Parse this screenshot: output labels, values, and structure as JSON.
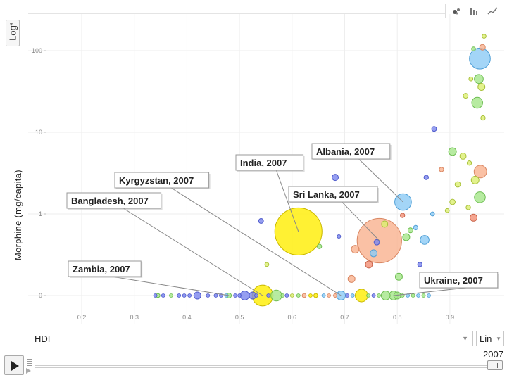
{
  "y_scale": {
    "label": "Log"
  },
  "y_axis_selector": {
    "label": "Morphine (mg/capita)"
  },
  "x_axis_selector": {
    "label": "HDI"
  },
  "x_scale": {
    "label": "Lin"
  },
  "timeline": {
    "year": "2007"
  },
  "chart_type_icons": [
    "bubble-chart-icon",
    "bar-chart-icon",
    "line-chart-icon"
  ],
  "colors": {
    "grid": "#eeeeee",
    "highlight_yellow": "#ffee00",
    "sri_lanka_orange": "#f9a07a",
    "blue": "#6a7bea",
    "light_blue": "#79c0f2",
    "green": "#9be07a",
    "yellow_green": "#d8ee60",
    "red_orange": "#f0856a"
  },
  "chart_data": {
    "type": "scatter",
    "title": "",
    "xlabel": "HDI",
    "ylabel": "Morphine (mg/capita)",
    "x_scale": "linear",
    "y_scale": "log",
    "xlim": [
      0.13,
      0.99
    ],
    "x_ticks": [
      0.2,
      0.3,
      0.4,
      0.5,
      0.6,
      0.7,
      0.8,
      0.9
    ],
    "x_tick_labels": [
      "0.2",
      "0.3",
      "0.4",
      "0.5",
      "0.6",
      "0.7",
      "0.8",
      "0.9"
    ],
    "y_ticks": [
      0,
      1,
      10,
      100
    ],
    "y_tick_labels": [
      "0",
      "1",
      "10",
      "100"
    ],
    "grid": true,
    "annotations": [
      {
        "text": "India, 2007",
        "x": 0.61,
        "y": 0.61
      },
      {
        "text": "Albania, 2007",
        "x": 0.81,
        "y": 1.4
      },
      {
        "text": "Kyrgyzstan, 2007",
        "x": 0.7,
        "y": 0
      },
      {
        "text": "Sri Lanka, 2007",
        "x": 0.76,
        "y": 0.47
      },
      {
        "text": "Bangladesh, 2007",
        "x": 0.54,
        "y": 0
      },
      {
        "text": "Zambia, 2007",
        "x": 0.49,
        "y": 0
      },
      {
        "text": "Ukraine, 2007",
        "x": 0.79,
        "y": 0
      }
    ],
    "points": [
      {
        "x": 0.612,
        "y": 0.61,
        "size": 1125,
        "color": "yellow",
        "label": "India, 2007"
      },
      {
        "x": 0.766,
        "y": 0.47,
        "size": 1000,
        "color": "orange",
        "label": "Sri Lanka, 2007"
      },
      {
        "x": 0.544,
        "y": 0,
        "size": 220,
        "color": "yellow",
        "label": "Bangladesh, 2007"
      },
      {
        "x": 0.811,
        "y": 1.4,
        "size": 140,
        "color": "lightblue",
        "label": "Albania, 2007"
      },
      {
        "x": 0.693,
        "y": 0,
        "size": 40,
        "color": "lightblue",
        "label": "Kyrgyzstan, 2007"
      },
      {
        "x": 0.48,
        "y": 0,
        "size": 12,
        "color": "green",
        "label": "Zambia, 2007"
      },
      {
        "x": 0.793,
        "y": 0,
        "size": 40,
        "color": "green",
        "label": "Ukraine, 2007"
      },
      {
        "x": 0.957,
        "y": 80,
        "size": 220,
        "color": "lightblue"
      },
      {
        "x": 0.962,
        "y": 110,
        "size": 16,
        "color": "orange"
      },
      {
        "x": 0.965,
        "y": 150,
        "size": 8,
        "color": "yellowgreen"
      },
      {
        "x": 0.945,
        "y": 105,
        "size": 8,
        "color": "green"
      },
      {
        "x": 0.955,
        "y": 45,
        "size": 40,
        "color": "green"
      },
      {
        "x": 0.96,
        "y": 36,
        "size": 25,
        "color": "yellowgreen"
      },
      {
        "x": 0.94,
        "y": 45,
        "size": 8,
        "color": "yellowgreen"
      },
      {
        "x": 0.952,
        "y": 23,
        "size": 60,
        "color": "green"
      },
      {
        "x": 0.93,
        "y": 28,
        "size": 12,
        "color": "yellowgreen"
      },
      {
        "x": 0.963,
        "y": 15,
        "size": 10,
        "color": "yellowgreen"
      },
      {
        "x": 0.958,
        "y": 3.3,
        "size": 80,
        "color": "orange"
      },
      {
        "x": 0.948,
        "y": 2.6,
        "size": 30,
        "color": "yellowgreen"
      },
      {
        "x": 0.937,
        "y": 4.2,
        "size": 10,
        "color": "yellowgreen"
      },
      {
        "x": 0.957,
        "y": 1.6,
        "size": 60,
        "color": "green"
      },
      {
        "x": 0.925,
        "y": 5.1,
        "size": 20,
        "color": "yellowgreen"
      },
      {
        "x": 0.905,
        "y": 5.8,
        "size": 30,
        "color": "green"
      },
      {
        "x": 0.915,
        "y": 2.3,
        "size": 15,
        "color": "yellowgreen"
      },
      {
        "x": 0.935,
        "y": 1.2,
        "size": 10,
        "color": "yellowgreen"
      },
      {
        "x": 0.945,
        "y": 0.9,
        "size": 25,
        "color": "redorange"
      },
      {
        "x": 0.905,
        "y": 1.4,
        "size": 15,
        "color": "yellowgreen"
      },
      {
        "x": 0.895,
        "y": 1.1,
        "size": 8,
        "color": "yellowgreen"
      },
      {
        "x": 0.884,
        "y": 3.5,
        "size": 10,
        "color": "orange"
      },
      {
        "x": 0.87,
        "y": 11,
        "size": 12,
        "color": "blue"
      },
      {
        "x": 0.855,
        "y": 2.8,
        "size": 10,
        "color": "blue"
      },
      {
        "x": 0.867,
        "y": 1.0,
        "size": 8,
        "color": "lightblue"
      },
      {
        "x": 0.852,
        "y": 0.48,
        "size": 40,
        "color": "lightblue"
      },
      {
        "x": 0.835,
        "y": 0.68,
        "size": 10,
        "color": "lightblue"
      },
      {
        "x": 0.825,
        "y": 0.63,
        "size": 12,
        "color": "green"
      },
      {
        "x": 0.81,
        "y": 0.96,
        "size": 10,
        "color": "redorange"
      },
      {
        "x": 0.817,
        "y": 0.52,
        "size": 25,
        "color": "green"
      },
      {
        "x": 0.776,
        "y": 0.75,
        "size": 20,
        "color": "yellowgreen"
      },
      {
        "x": 0.761,
        "y": 0.45,
        "size": 15,
        "color": "blue"
      },
      {
        "x": 0.755,
        "y": 0.33,
        "size": 25,
        "color": "lightblue"
      },
      {
        "x": 0.72,
        "y": 0.37,
        "size": 30,
        "color": "orange"
      },
      {
        "x": 0.713,
        "y": 0.16,
        "size": 25,
        "color": "orange"
      },
      {
        "x": 0.746,
        "y": 0.24,
        "size": 25,
        "color": "redorange"
      },
      {
        "x": 0.803,
        "y": 0.17,
        "size": 25,
        "color": "green"
      },
      {
        "x": 0.843,
        "y": 0.24,
        "size": 10,
        "color": "blue"
      },
      {
        "x": 0.682,
        "y": 2.8,
        "size": 20,
        "color": "blue"
      },
      {
        "x": 0.541,
        "y": 0.82,
        "size": 12,
        "color": "blue"
      },
      {
        "x": 0.652,
        "y": 0.4,
        "size": 10,
        "color": "green"
      },
      {
        "x": 0.689,
        "y": 0.53,
        "size": 6,
        "color": "blue"
      },
      {
        "x": 0.552,
        "y": 0.24,
        "size": 8,
        "color": "yellowgreen"
      },
      {
        "x": 0.682,
        "y": 0,
        "size": 6,
        "color": "orange"
      },
      {
        "x": 0.345,
        "y": 0,
        "size": 8,
        "color": "green"
      },
      {
        "x": 0.42,
        "y": 0,
        "size": 25,
        "color": "blue"
      },
      {
        "x": 0.51,
        "y": 0,
        "size": 40,
        "color": "blue"
      },
      {
        "x": 0.525,
        "y": 0,
        "size": 25,
        "color": "blue"
      },
      {
        "x": 0.57,
        "y": 0,
        "size": 60,
        "color": "green"
      },
      {
        "x": 0.732,
        "y": 0,
        "size": 80,
        "color": "yellow"
      },
      {
        "x": 0.8,
        "y": 0,
        "size": 25,
        "color": "green"
      },
      {
        "x": 0.778,
        "y": 0,
        "size": 40,
        "color": "green"
      },
      {
        "x": 0.623,
        "y": 0,
        "size": 8,
        "color": "orange"
      },
      {
        "x": 0.645,
        "y": 0,
        "size": 8,
        "color": "yellow"
      }
    ],
    "small_dots_at_zero": {
      "x": [
        0.34,
        0.355,
        0.37,
        0.385,
        0.395,
        0.405,
        0.44,
        0.455,
        0.465,
        0.475,
        0.492,
        0.5,
        0.532,
        0.555,
        0.582,
        0.59,
        0.6,
        0.612,
        0.635,
        0.66,
        0.67,
        0.705,
        0.715,
        0.745,
        0.755,
        0.765,
        0.81,
        0.82,
        0.83,
        0.84,
        0.85,
        0.86
      ],
      "colors": [
        "blue",
        "blue",
        "green",
        "blue",
        "blue",
        "blue",
        "blue",
        "blue",
        "blue",
        "lightblue",
        "blue",
        "blue",
        "blue",
        "blue",
        "green",
        "blue",
        "yellowgreen",
        "green",
        "yellow",
        "lightblue",
        "orange",
        "blue",
        "lightblue",
        "green",
        "blue",
        "green",
        "green",
        "lightblue",
        "green",
        "lightblue",
        "green",
        "lightblue"
      ]
    }
  }
}
